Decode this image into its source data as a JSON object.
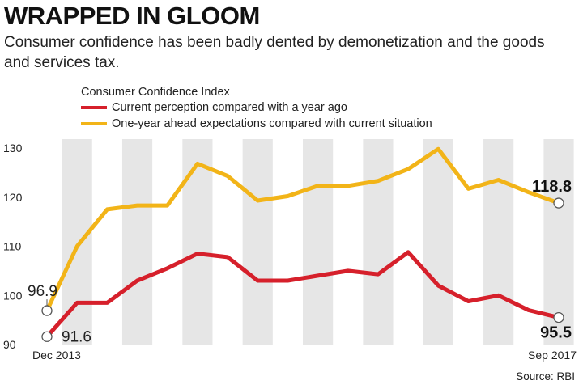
{
  "header": {
    "title": "WRAPPED IN GLOOM",
    "subtitle": "Consumer confidence has been badly dented by demonetization and the goods and services tax."
  },
  "legend": {
    "title": "Consumer Confidence Index"
  },
  "source": "Source: RBI",
  "chart_data": {
    "type": "line",
    "x_start_label": "Dec 2013",
    "x_end_label": "Sep 2017",
    "ylim": [
      90,
      130
    ],
    "yticks": [
      "90",
      "100",
      "110",
      "120",
      "130"
    ],
    "grid": "alternating vertical bands",
    "legend_position": "top-left",
    "series": [
      {
        "name": "Current perception compared with a year ago",
        "color": "#d6202b",
        "values": [
          91.6,
          98.5,
          98.5,
          103,
          105.5,
          108.5,
          107.8,
          103,
          103,
          104,
          105,
          104.3,
          108.8,
          102,
          98.8,
          100,
          97,
          95.5
        ],
        "start_label": "91.6",
        "end_label": "95.5"
      },
      {
        "name": "One-year ahead expectations compared with current situation",
        "color": "#f2b418",
        "values": [
          96.9,
          110,
          117.5,
          118.3,
          118.3,
          126.8,
          124.3,
          119.3,
          120.2,
          122.3,
          122.3,
          123.3,
          125.7,
          129.8,
          121.7,
          123.5,
          121,
          118.8
        ],
        "start_label": "96.9",
        "end_label": "118.8"
      }
    ]
  }
}
